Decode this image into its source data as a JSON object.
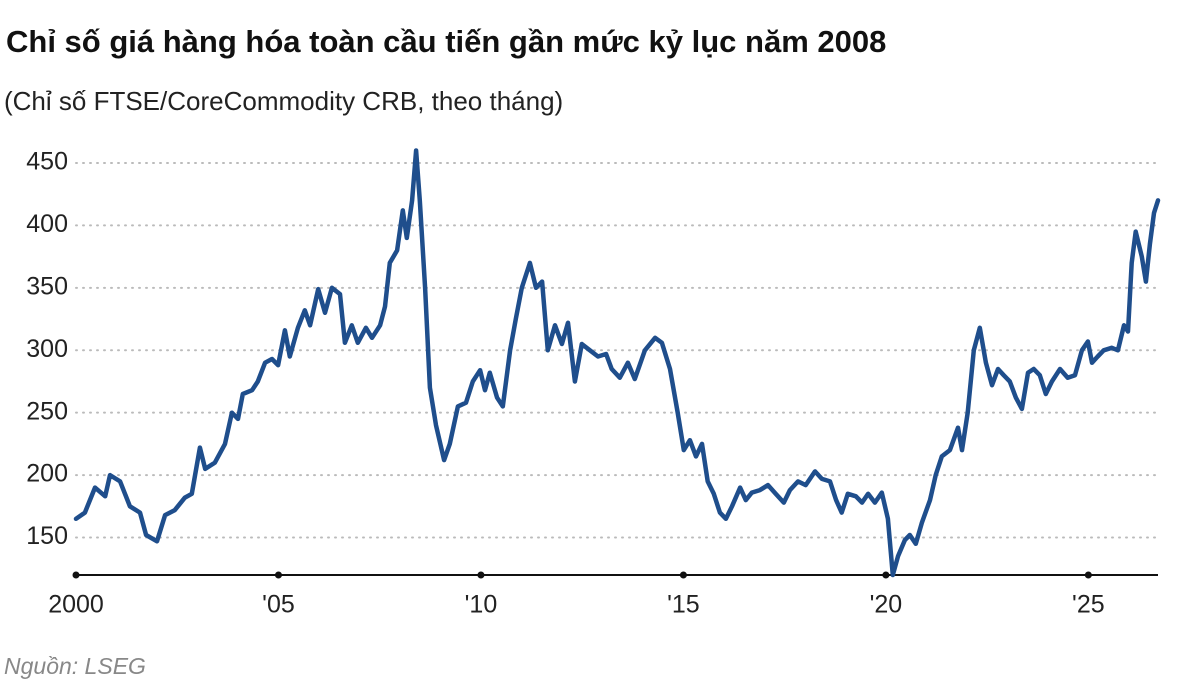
{
  "chart_data": {
    "type": "line",
    "title": "Chỉ số giá hàng hóa toàn cầu tiến gần mức kỷ lục năm 2008",
    "subtitle": "(Chỉ số FTSE/CoreCommodity CRB, theo tháng)",
    "source": "Nguồn: LSEG",
    "xlim": [
      2000,
      2026.72
    ],
    "ylim": [
      120,
      470
    ],
    "xticks": [
      2000,
      {
        "value": 2005,
        "label": "'05"
      },
      {
        "value": 2010,
        "label": "'10"
      },
      {
        "value": 2015,
        "label": "'15"
      },
      {
        "value": 2020,
        "label": "'20"
      },
      {
        "value": 2025,
        "label": "'25"
      }
    ],
    "yticks": [
      150,
      200,
      250,
      300,
      350,
      400,
      450
    ],
    "grid": true,
    "series": [
      {
        "name": "FTSE/CoreCommodity CRB",
        "color": "#1f4e8c",
        "x": [
          2000.0,
          2000.22,
          2000.47,
          2000.72,
          2000.84,
          2001.09,
          2001.33,
          2001.58,
          2001.73,
          2002.0,
          2002.2,
          2002.44,
          2002.69,
          2002.86,
          2003.06,
          2003.19,
          2003.43,
          2003.68,
          2003.85,
          2004.0,
          2004.12,
          2004.35,
          2004.49,
          2004.67,
          2004.84,
          2004.99,
          2005.16,
          2005.28,
          2005.48,
          2005.65,
          2005.78,
          2005.98,
          2006.15,
          2006.32,
          2006.52,
          2006.64,
          2006.81,
          2006.96,
          2007.16,
          2007.31,
          2007.51,
          2007.63,
          2007.75,
          2007.93,
          2008.07,
          2008.17,
          2008.3,
          2008.4,
          2008.49,
          2008.62,
          2008.74,
          2008.89,
          2009.09,
          2009.23,
          2009.43,
          2009.63,
          2009.8,
          2009.98,
          2010.1,
          2010.22,
          2010.4,
          2010.54,
          2010.72,
          2010.86,
          2011.01,
          2011.21,
          2011.36,
          2011.51,
          2011.65,
          2011.83,
          2012.0,
          2012.15,
          2012.32,
          2012.49,
          2012.69,
          2012.89,
          2013.09,
          2013.23,
          2013.43,
          2013.63,
          2013.8,
          2014.05,
          2014.3,
          2014.47,
          2014.67,
          2014.86,
          2015.01,
          2015.16,
          2015.31,
          2015.46,
          2015.6,
          2015.75,
          2015.9,
          2016.05,
          2016.2,
          2016.4,
          2016.54,
          2016.69,
          2016.89,
          2017.09,
          2017.28,
          2017.48,
          2017.63,
          2017.83,
          2018.02,
          2018.25,
          2018.42,
          2018.62,
          2018.77,
          2018.91,
          2019.06,
          2019.26,
          2019.41,
          2019.56,
          2019.73,
          2019.9,
          2020.05,
          2020.17,
          2020.3,
          2020.47,
          2020.59,
          2020.74,
          2020.89,
          2021.09,
          2021.23,
          2021.38,
          2021.58,
          2021.78,
          2021.88,
          2022.02,
          2022.17,
          2022.32,
          2022.47,
          2022.62,
          2022.77,
          2022.91,
          2023.06,
          2023.21,
          2023.36,
          2023.51,
          2023.65,
          2023.8,
          2023.95,
          2024.1,
          2024.3,
          2024.49,
          2024.67,
          2024.84,
          2024.99,
          2025.09,
          2025.23,
          2025.38,
          2025.58,
          2025.73,
          2025.88,
          2025.98,
          2026.07,
          2026.17,
          2026.32,
          2026.42,
          2026.52,
          2026.62,
          2026.72
        ],
        "values": [
          165,
          170,
          190,
          183,
          200,
          195,
          175,
          170,
          152,
          147,
          168,
          172,
          182,
          185,
          222,
          205,
          210,
          225,
          250,
          245,
          265,
          268,
          275,
          290,
          293,
          288,
          316,
          295,
          318,
          332,
          320,
          349,
          330,
          350,
          345,
          306,
          320,
          306,
          318,
          310,
          320,
          335,
          370,
          380,
          412,
          390,
          420,
          460,
          420,
          350,
          270,
          240,
          212,
          225,
          255,
          258,
          275,
          284,
          268,
          282,
          262,
          255,
          300,
          325,
          350,
          370,
          350,
          355,
          300,
          320,
          305,
          322,
          275,
          305,
          300,
          295,
          297,
          285,
          278,
          290,
          277,
          300,
          310,
          306,
          285,
          250,
          220,
          228,
          215,
          225,
          195,
          185,
          170,
          165,
          175,
          190,
          180,
          186,
          188,
          192,
          185,
          178,
          188,
          195,
          192,
          203,
          197,
          195,
          180,
          170,
          185,
          183,
          178,
          185,
          178,
          186,
          165,
          120,
          135,
          148,
          152,
          145,
          162,
          180,
          200,
          215,
          220,
          238,
          220,
          250,
          300,
          318,
          290,
          272,
          285,
          280,
          275,
          262,
          253,
          282,
          285,
          280,
          265,
          275,
          285,
          278,
          280,
          300,
          307,
          290,
          295,
          300,
          302,
          300,
          320,
          315,
          370,
          395,
          375,
          355,
          385,
          410,
          420
        ]
      }
    ]
  }
}
